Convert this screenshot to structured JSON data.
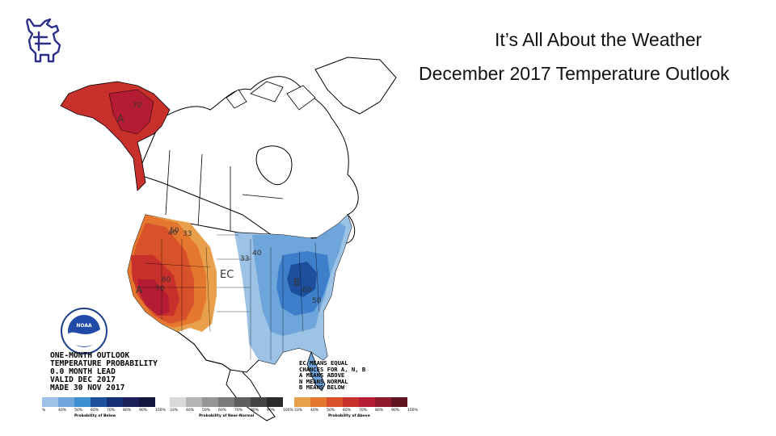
{
  "slide": {
    "title_line1": "It’s All About the Weather",
    "title_line2": "December 2017 Temperature Outlook"
  },
  "logo": {
    "icon": "bull-logo-icon",
    "color": "#2b2f8a"
  },
  "map": {
    "labels": {
      "alaska_a": "A",
      "alaska_70": "70",
      "west_50": "50",
      "west_40": "40",
      "west_33": "33",
      "west_60": "60",
      "west_70": "70",
      "west_a": "A",
      "ec": "EC",
      "east_40": "40",
      "east_33": "33",
      "east_b": "B",
      "east_50": "50",
      "east_60": "60"
    },
    "colors": {
      "above_33": "#e8a04c",
      "above_40": "#e5772f",
      "above_50": "#d9512a",
      "above_60": "#c8302c",
      "above_70": "#b31c33",
      "below_33": "#9cc3e6",
      "below_40": "#6ea6dc",
      "below_50": "#3d7fca",
      "below_60": "#1d4f9c"
    },
    "outlook_lines": [
      "ONE-MONTH OUTLOOK",
      "TEMPERATURE PROBABILITY",
      "0.0 MONTH LEAD",
      "VALID DEC 2017",
      "MADE 30 NOV 2017"
    ],
    "key_lines": [
      "EC MEANS EQUAL",
      "CHANCES FOR A, N, B",
      "A MEANS ABOVE",
      "N MEANS NORMAL",
      "B MEANS BELOW"
    ],
    "noaa_logo_text": "NOAA"
  },
  "scale": {
    "below": {
      "caption": "Probability of Below",
      "ticks": [
        "%",
        "40%",
        "50%",
        "60%",
        "70%",
        "80%",
        "90%",
        "100%"
      ],
      "colors": [
        "#9cc3e6",
        "#6ea6dc",
        "#3d8fd0",
        "#1d4f9c",
        "#152f77",
        "#1b1f5a",
        "#141440"
      ]
    },
    "normal": {
      "caption": "Probability of Near-Normal",
      "ticks": [
        "33%",
        "40%",
        "50%",
        "60%",
        "70%",
        "80%",
        "90%",
        "100%"
      ],
      "colors": [
        "#d9d9d9",
        "#b5b5b5",
        "#969696",
        "#7a7a7a",
        "#5e5e5e",
        "#444444",
        "#2a2a2a"
      ]
    },
    "above": {
      "caption": "Probability of Above",
      "ticks": [
        "33%",
        "40%",
        "50%",
        "60%",
        "70%",
        "80%",
        "90%",
        "100%"
      ],
      "colors": [
        "#e8a04c",
        "#e5772f",
        "#d9512a",
        "#c8302c",
        "#b31c33",
        "#8e1a2c",
        "#5f1420"
      ]
    }
  }
}
